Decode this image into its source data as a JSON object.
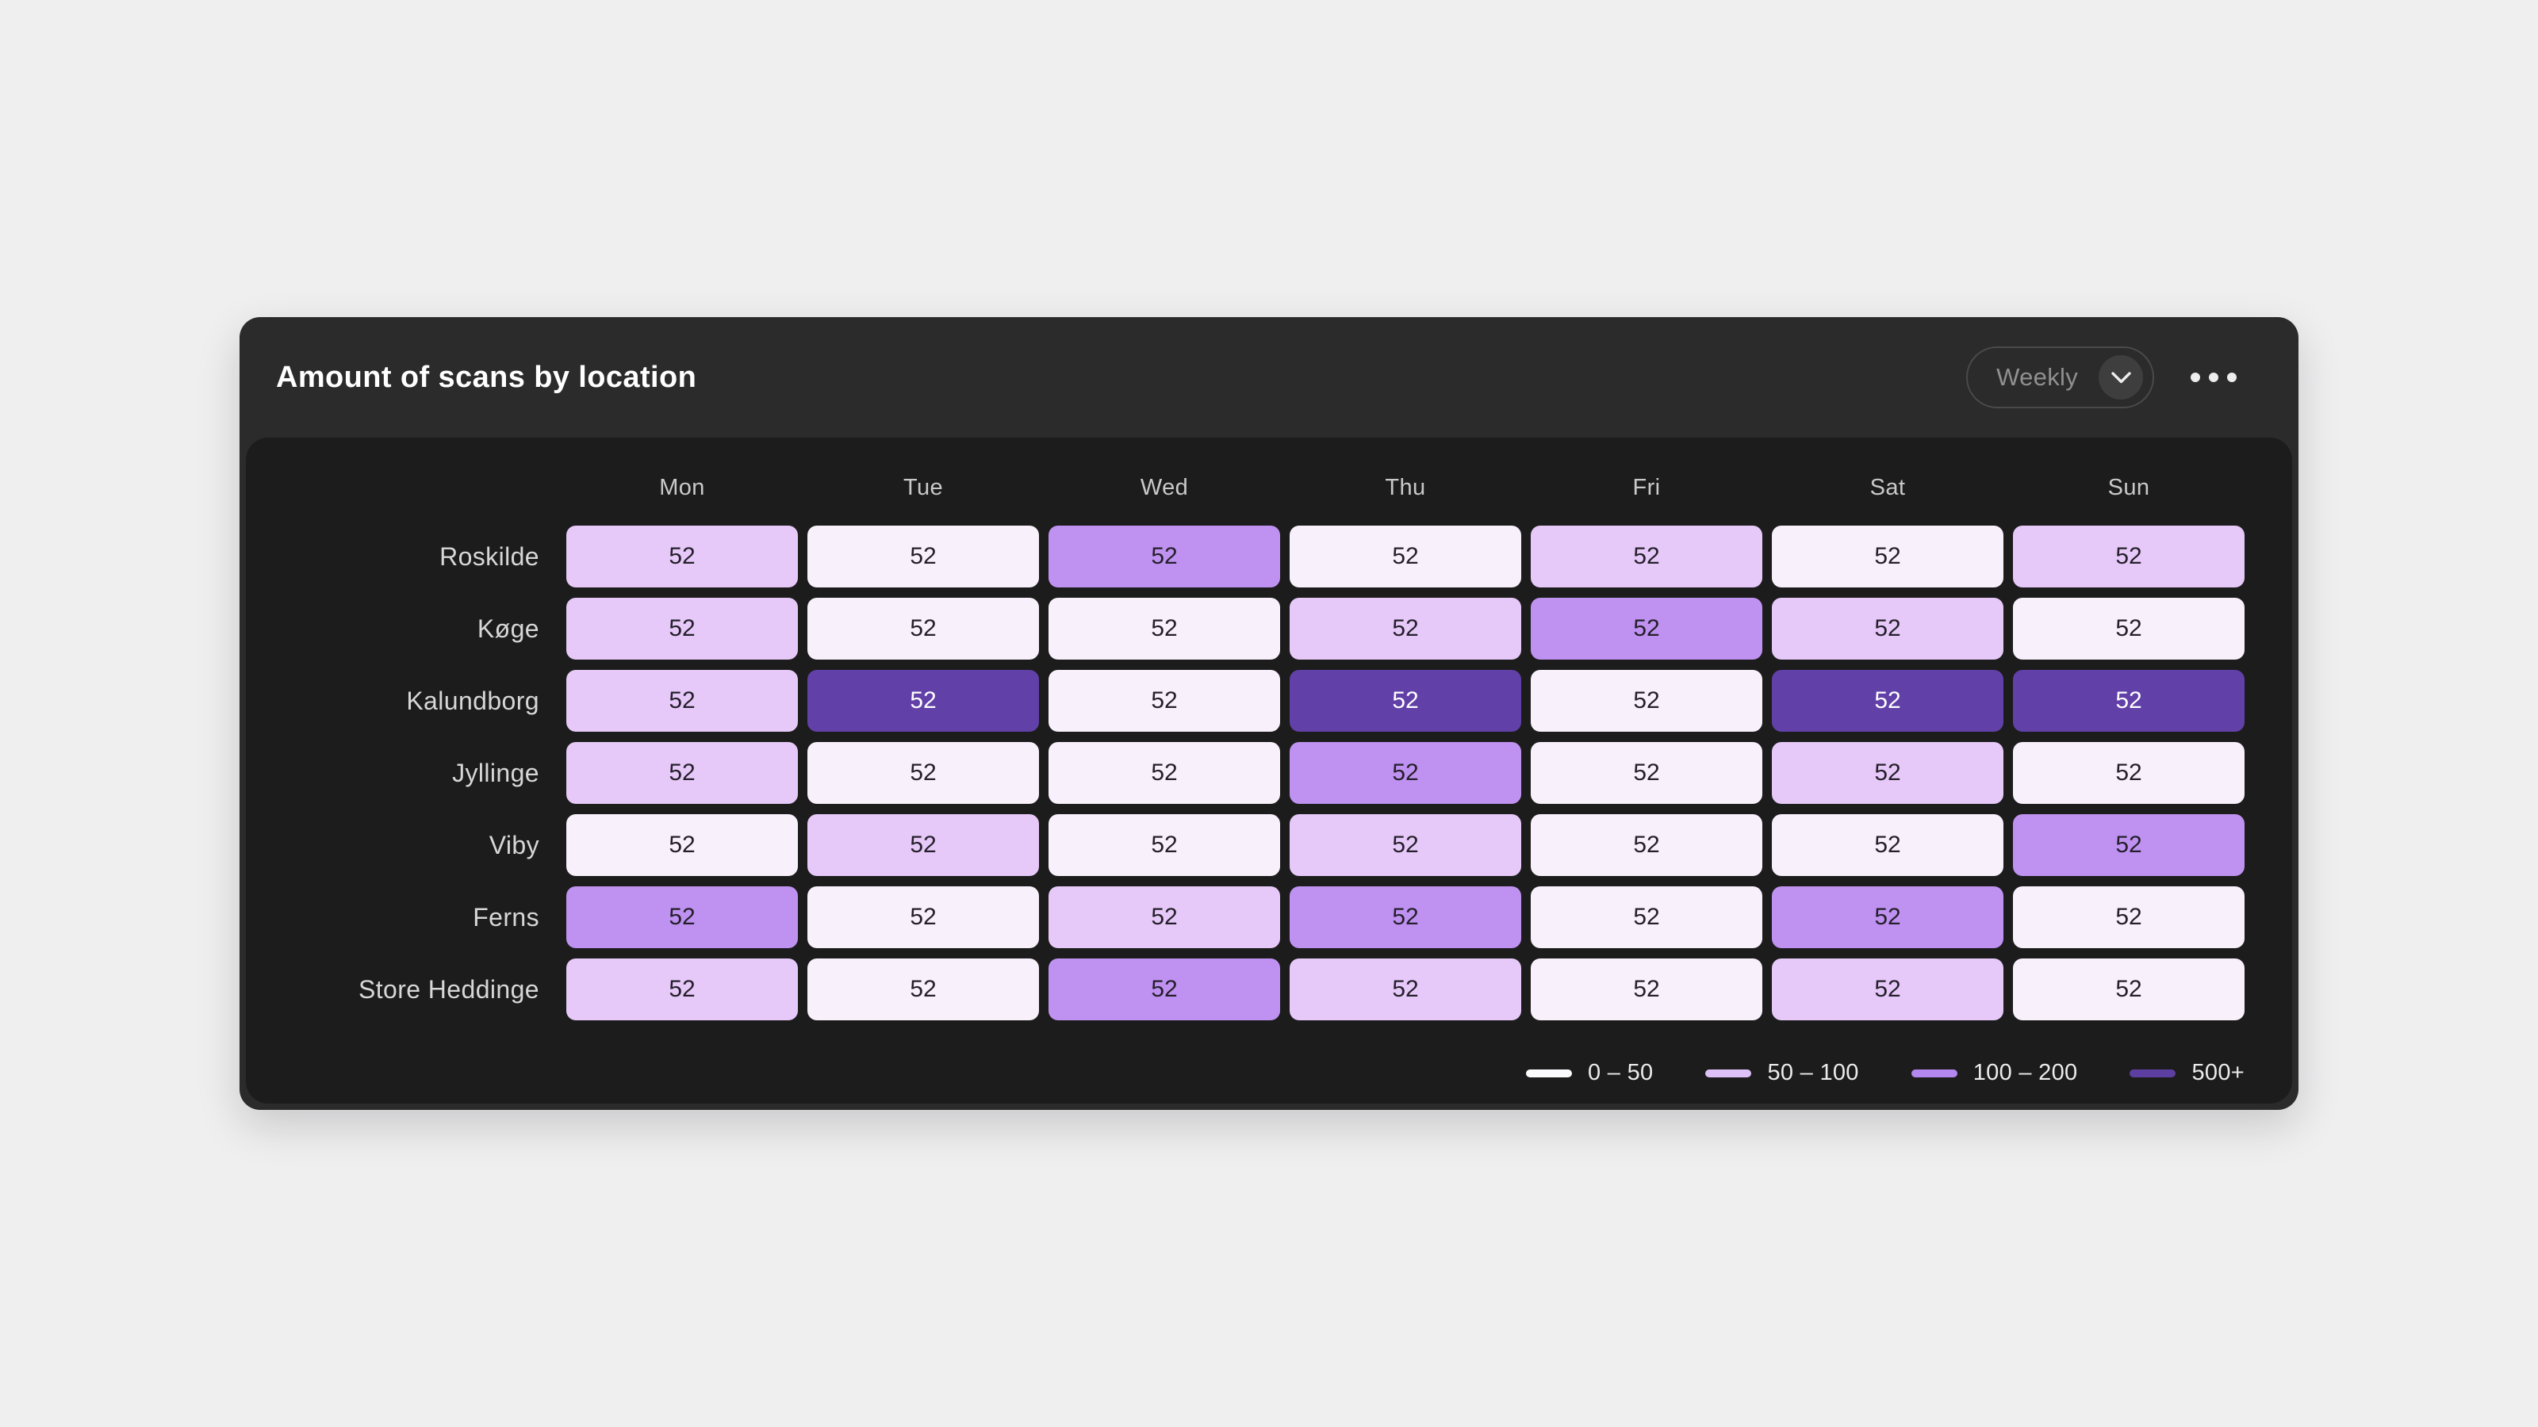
{
  "card": {
    "title": "Amount of scans by location",
    "period_selector": {
      "label": "Weekly",
      "icon": "chevron-down-icon"
    },
    "menu": {
      "icon": "ellipsis-icon"
    }
  },
  "colors": {
    "page_background": "#efeff0",
    "card_background": "#2b2b2b",
    "panel_background": "#1c1c1c",
    "title_text": "#ffffff",
    "muted_text": "#909090"
  },
  "chart_data": {
    "type": "heatmap",
    "title": "Amount of scans by location",
    "columns": [
      "Mon",
      "Tue",
      "Wed",
      "Thu",
      "Fri",
      "Sat",
      "Sun"
    ],
    "rows": [
      "Roskilde",
      "Køge",
      "Kalundborg",
      "Jyllinge",
      "Viby",
      "Ferns",
      "Store Heddinge"
    ],
    "values": [
      [
        52,
        52,
        52,
        52,
        52,
        52,
        52
      ],
      [
        52,
        52,
        52,
        52,
        52,
        52,
        52
      ],
      [
        52,
        52,
        52,
        52,
        52,
        52,
        52
      ],
      [
        52,
        52,
        52,
        52,
        52,
        52,
        52
      ],
      [
        52,
        52,
        52,
        52,
        52,
        52,
        52
      ],
      [
        52,
        52,
        52,
        52,
        52,
        52,
        52
      ],
      [
        52,
        52,
        52,
        52,
        52,
        52,
        52
      ]
    ],
    "bucket_index": [
      [
        1,
        0,
        2,
        0,
        1,
        0,
        1
      ],
      [
        1,
        0,
        0,
        1,
        2,
        1,
        0
      ],
      [
        1,
        3,
        0,
        3,
        0,
        3,
        3
      ],
      [
        1,
        0,
        0,
        2,
        0,
        1,
        0
      ],
      [
        0,
        1,
        0,
        1,
        0,
        0,
        2
      ],
      [
        2,
        0,
        1,
        2,
        0,
        2,
        0
      ],
      [
        1,
        0,
        2,
        1,
        0,
        1,
        0
      ]
    ],
    "palette": [
      "#f8f1fc",
      "#e6c9f8",
      "#bf92f1",
      "#6140a8"
    ],
    "cell_text_colors": [
      "#241f2b",
      "#241f2b",
      "#241f2b",
      "#ffffff"
    ],
    "legend": [
      {
        "label": "0 – 50",
        "color": "#fbfafc"
      },
      {
        "label": "50 – 100",
        "color": "#ddc1f6"
      },
      {
        "label": "100 – 200",
        "color": "#b287ef"
      },
      {
        "label": "500+",
        "color": "#5d3fa2"
      }
    ],
    "legend_position": "bottom-right",
    "grid": false
  }
}
